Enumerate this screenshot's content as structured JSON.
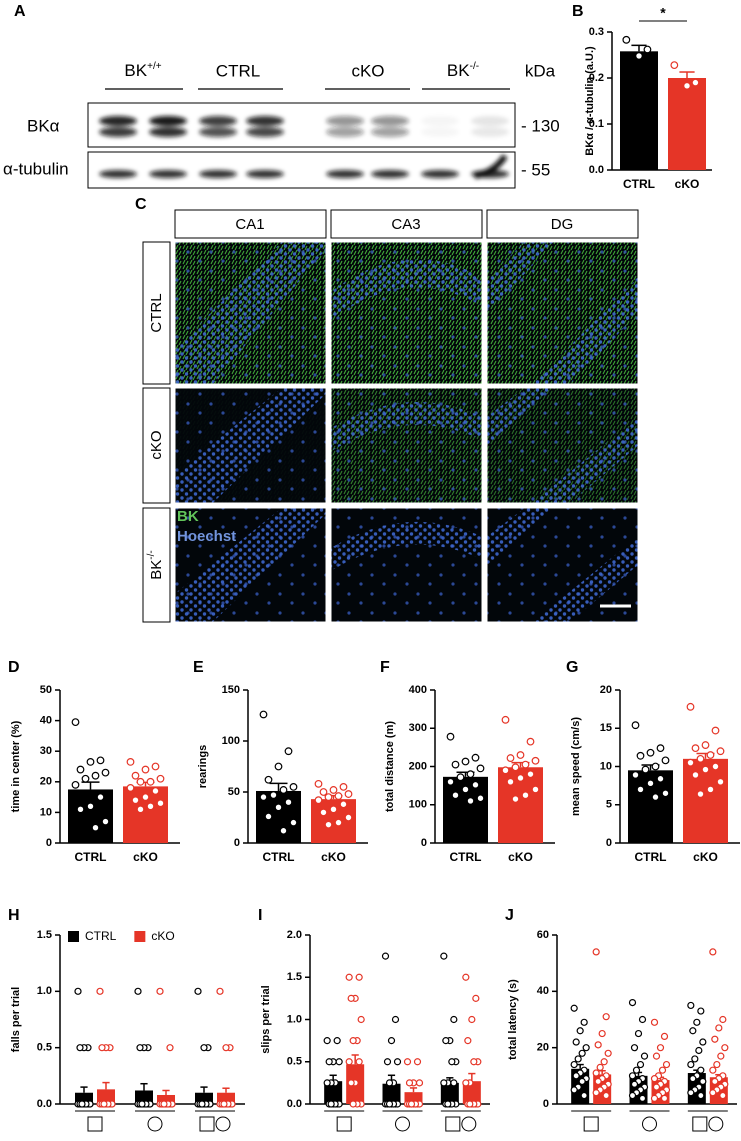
{
  "blot": {
    "panel": "A",
    "groups": [
      {
        "base": "BK",
        "sup": "+/+"
      },
      {
        "base": "CTRL"
      },
      {
        "base": "cKO"
      },
      {
        "base": "BK",
        "sup": "-/-"
      }
    ],
    "unit": "kDa",
    "rows": [
      "BKα",
      "α-tubulin"
    ],
    "markers": [
      "- 130",
      "- 55"
    ]
  },
  "micrographs": {
    "panel": "C",
    "columns": [
      "CA1",
      "CA3",
      "DG"
    ],
    "rows": [
      {
        "base": "CTRL"
      },
      {
        "base": "cKO"
      },
      {
        "base": "BK",
        "sup": "-/-"
      }
    ],
    "legend": [
      "BK",
      "Hoechst"
    ]
  },
  "chart_data": [
    {
      "type": "bar",
      "panel": "B",
      "ylabel": "BKα / α-tubulin (a.U.)",
      "categories": [
        "CTRL",
        "cKO"
      ],
      "values": [
        0.258,
        0.2
      ],
      "errors": [
        0.013,
        0.013
      ],
      "colors": [
        "#000000",
        "#e53527"
      ],
      "points": [
        [
          0.283,
          0.262,
          0.248
        ],
        [
          0.228,
          0.19,
          0.183
        ]
      ],
      "significance": "*",
      "ylim": [
        0,
        0.3
      ],
      "yticks": [
        {
          "value": 0,
          "label": "0.0"
        },
        0.1,
        0.2,
        0.3
      ]
    },
    {
      "type": "bar",
      "panel": "D",
      "ylabel": "time in center (%)",
      "categories": [
        "CTRL",
        "cKO"
      ],
      "values": [
        17.5,
        18.5
      ],
      "errors": [
        2.4,
        1.3
      ],
      "colors": [
        "#000000",
        "#e53527"
      ],
      "points": [
        [
          39.5,
          27,
          26.5,
          24,
          23,
          22,
          21,
          19,
          15,
          12,
          11,
          7,
          5
        ],
        [
          26.5,
          25,
          24,
          22,
          21,
          20,
          20,
          18,
          17,
          15,
          14,
          13,
          12,
          11
        ]
      ],
      "ylim": [
        0,
        50
      ],
      "yticks": [
        0,
        10,
        20,
        30,
        40,
        50
      ]
    },
    {
      "type": "bar",
      "panel": "E",
      "ylabel": "rearings",
      "categories": [
        "CTRL",
        "cKO"
      ],
      "values": [
        51,
        43
      ],
      "errors": [
        7.5,
        3.5
      ],
      "colors": [
        "#000000",
        "#e53527"
      ],
      "points": [
        [
          126,
          90,
          75,
          62,
          55,
          52,
          47,
          45,
          40,
          35,
          26,
          20,
          12
        ],
        [
          58,
          55,
          52,
          50,
          48,
          46,
          45,
          42,
          38,
          33,
          30,
          25,
          20,
          18
        ]
      ],
      "ylim": [
        0,
        150
      ],
      "yticks": [
        0,
        50,
        100,
        150
      ]
    },
    {
      "type": "bar",
      "panel": "F",
      "ylabel": "total distance (m)",
      "categories": [
        "CTRL",
        "cKO"
      ],
      "values": [
        173,
        198
      ],
      "errors": [
        12,
        12
      ],
      "colors": [
        "#000000",
        "#e53527"
      ],
      "points": [
        [
          278,
          223,
          213,
          205,
          195,
          180,
          172,
          160,
          152,
          140,
          125,
          117,
          110
        ],
        [
          322,
          265,
          230,
          222,
          215,
          205,
          198,
          190,
          180,
          170,
          160,
          140,
          125,
          115
        ]
      ],
      "ylim": [
        0,
        400
      ],
      "yticks": [
        0,
        100,
        200,
        300,
        400
      ]
    },
    {
      "type": "bar",
      "panel": "G",
      "ylabel": "mean speed (cm/s)",
      "categories": [
        "CTRL",
        "cKO"
      ],
      "values": [
        9.5,
        11
      ],
      "errors": [
        0.7,
        0.7
      ],
      "colors": [
        "#000000",
        "#e53527"
      ],
      "points": [
        [
          15.4,
          12.4,
          11.8,
          11.4,
          10.8,
          10,
          9.6,
          8.9,
          8.4,
          7.8,
          7,
          6.5,
          6
        ],
        [
          17.8,
          14.7,
          12.8,
          12.4,
          12,
          11.5,
          11,
          10.5,
          10,
          9.6,
          8.9,
          8,
          7,
          6.4
        ]
      ],
      "ylim": [
        0,
        20
      ],
      "yticks": [
        0,
        5,
        10,
        15,
        20
      ]
    },
    {
      "type": "bar",
      "panel": "H",
      "ylabel": "falls per trial",
      "categories": [
        null,
        null,
        null
      ],
      "series": [
        {
          "name": "CTRL",
          "color": "#000000",
          "values": [
            0.1,
            0.12,
            0.1
          ],
          "errors": [
            0.05,
            0.06,
            0.05
          ],
          "points": [
            [
              1,
              0.5,
              0.5,
              0.5,
              0,
              0,
              0,
              0,
              0,
              0,
              0,
              0,
              0,
              0
            ],
            [
              1,
              0.5,
              0.5,
              0.5,
              0,
              0,
              0,
              0,
              0,
              0,
              0,
              0,
              0,
              0
            ],
            [
              1,
              0.5,
              0.5,
              0,
              0,
              0,
              0,
              0,
              0,
              0,
              0,
              0,
              0,
              0
            ]
          ]
        },
        {
          "name": "cKO",
          "color": "#e53527",
          "values": [
            0.13,
            0.08,
            0.1
          ],
          "errors": [
            0.06,
            0.04,
            0.04
          ],
          "points": [
            [
              1,
              0.5,
              0.5,
              0.5,
              0,
              0,
              0,
              0,
              0,
              0,
              0,
              0,
              0,
              0
            ],
            [
              1,
              0.5,
              0,
              0,
              0,
              0,
              0,
              0,
              0,
              0,
              0,
              0,
              0,
              0
            ],
            [
              1,
              0.5,
              0.5,
              0,
              0,
              0,
              0,
              0,
              0,
              0,
              0,
              0,
              0,
              0
            ]
          ]
        }
      ],
      "ylim": [
        0,
        1.5
      ],
      "yticks": [
        {
          "value": 0,
          "label": "0.0"
        },
        0.5,
        {
          "value": 1,
          "label": "1.0"
        },
        1.5
      ]
    },
    {
      "type": "bar",
      "panel": "I",
      "ylabel": "slips per trial",
      "categories": [
        null,
        null,
        null
      ],
      "series": [
        {
          "color": "#000000",
          "values": [
            0.27,
            0.24,
            0.25
          ],
          "errors": [
            0.07,
            0.1,
            0.06
          ],
          "points": [
            [
              0.75,
              0.75,
              0.5,
              0.5,
              0.5,
              0.25,
              0.25,
              0.25,
              0,
              0,
              0,
              0,
              0,
              0
            ],
            [
              1.75,
              1,
              0.75,
              0.5,
              0.5,
              0.25,
              0.25,
              0,
              0,
              0,
              0,
              0,
              0,
              0
            ],
            [
              1.75,
              1,
              0.75,
              0.75,
              0.5,
              0.5,
              0.25,
              0.25,
              0.25,
              0,
              0,
              0,
              0,
              0
            ]
          ]
        },
        {
          "color": "#e53527",
          "values": [
            0.47,
            0.14,
            0.27
          ],
          "errors": [
            0.11,
            0.05,
            0.09
          ],
          "points": [
            [
              1.5,
              1.5,
              1.25,
              1.25,
              1,
              0.75,
              0.75,
              0.5,
              0.5,
              0.25,
              0.25,
              0,
              0,
              0
            ],
            [
              0.5,
              0.5,
              0.25,
              0.25,
              0.25,
              0,
              0,
              0,
              0,
              0,
              0,
              0,
              0,
              0
            ],
            [
              1.5,
              1.25,
              1,
              0.75,
              0.5,
              0.5,
              0.25,
              0.25,
              0,
              0,
              0,
              0,
              0,
              0
            ]
          ]
        }
      ],
      "ylim": [
        0,
        2
      ],
      "yticks": [
        {
          "value": 0,
          "label": "0.0"
        },
        0.5,
        {
          "value": 1,
          "label": "1.0"
        },
        1.5,
        {
          "value": 2,
          "label": "2.0"
        }
      ]
    },
    {
      "type": "bar",
      "panel": "J",
      "ylabel": "total latency (s)",
      "categories": [
        null,
        null,
        null
      ],
      "series": [
        {
          "color": "#000000",
          "values": [
            12.5,
            10,
            11
          ],
          "errors": [
            1.5,
            1.2,
            1
          ],
          "points": [
            [
              34,
              29,
              26,
              22,
              20,
              18,
              16,
              14,
              12,
              11,
              10,
              9,
              8,
              6,
              5,
              3
            ],
            [
              36,
              30,
              25,
              20,
              17,
              14,
              12,
              10,
              9,
              8,
              7,
              6,
              5,
              4,
              3,
              2
            ],
            [
              35,
              33,
              29,
              26,
              22,
              19,
              16,
              14,
              12,
              10,
              9,
              8,
              6,
              5,
              4,
              3
            ]
          ]
        },
        {
          "color": "#e53527",
          "values": [
            10.5,
            8.5,
            9.5
          ],
          "errors": [
            1.3,
            1,
            0.9
          ],
          "points": [
            [
              54,
              31,
              25,
              21,
              18,
              15,
              13,
              11,
              10,
              9,
              8,
              7,
              6,
              5,
              4,
              3
            ],
            [
              29,
              24,
              20,
              17,
              14,
              12,
              10,
              9,
              8,
              7,
              6,
              5,
              4,
              3,
              2,
              2
            ],
            [
              54,
              30,
              27,
              23,
              20,
              17,
              14,
              12,
              10,
              9,
              8,
              7,
              6,
              5,
              4,
              3
            ]
          ]
        }
      ],
      "ylim": [
        0,
        60
      ],
      "yticks": [
        0,
        20,
        40,
        60
      ]
    }
  ]
}
